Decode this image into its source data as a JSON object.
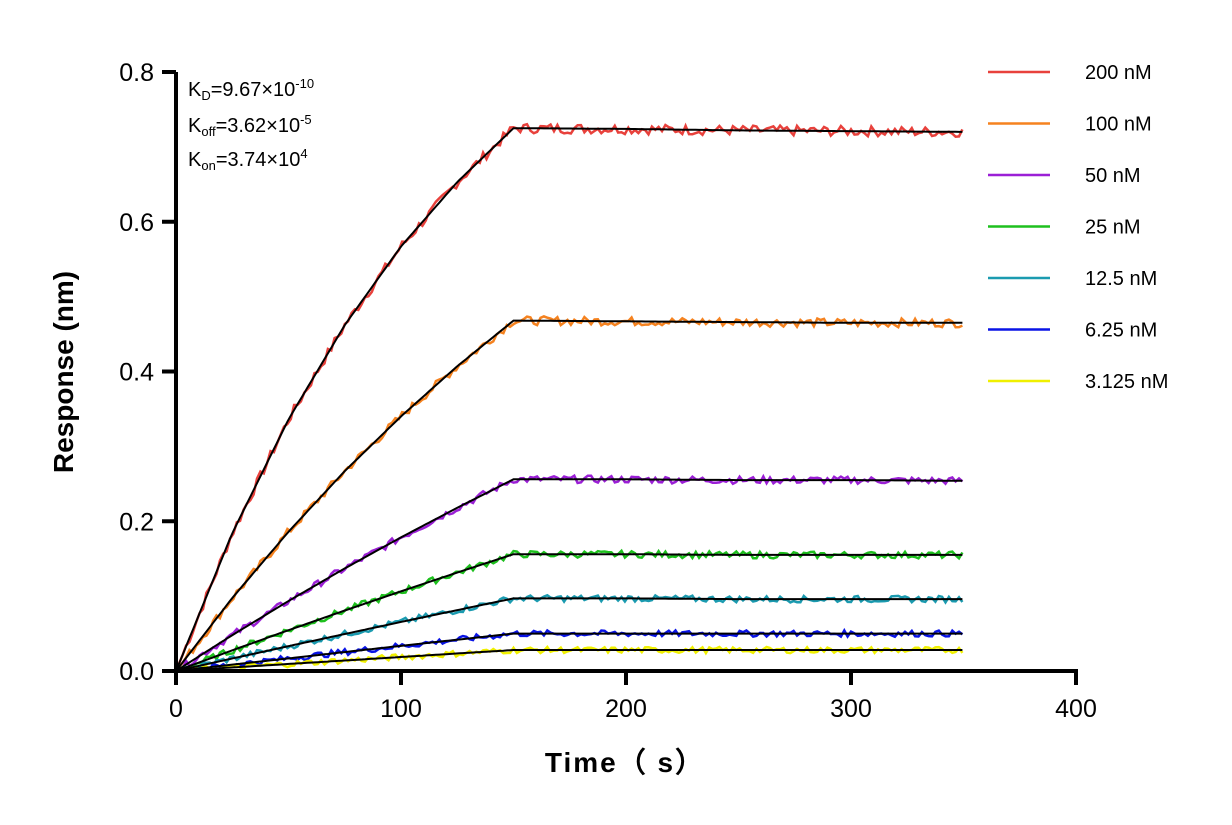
{
  "chart_data": {
    "type": "line",
    "title": "",
    "xlabel": "Time（ s）",
    "ylabel": "Response (nm)",
    "xlim": [
      0,
      400
    ],
    "ylim": [
      0,
      0.8
    ],
    "xticks": [
      "0",
      "100",
      "200",
      "300",
      "400"
    ],
    "yticks": [
      "0.0",
      "0.2",
      "0.4",
      "0.6",
      "0.8"
    ],
    "grid": false,
    "legend_position": "top-right",
    "x": [
      0,
      25,
      50,
      75,
      100,
      125,
      150,
      200,
      250,
      300,
      350
    ],
    "fit_color": "#000000",
    "series": [
      {
        "name": "200 nM",
        "color": "#e8413c",
        "values": [
          0,
          0.184,
          0.336,
          0.462,
          0.567,
          0.653,
          0.725,
          0.724,
          0.722,
          0.721,
          0.72
        ]
      },
      {
        "name": "100 nM",
        "color": "#f5821f",
        "values": [
          0,
          0.0975,
          0.186,
          0.267,
          0.34,
          0.407,
          0.468,
          0.467,
          0.466,
          0.465,
          0.465
        ]
      },
      {
        "name": "50 nM",
        "color": "#9b1fd6",
        "values": [
          0,
          0.0479,
          0.0935,
          0.137,
          0.1785,
          0.218,
          0.256,
          0.256,
          0.255,
          0.255,
          0.254
        ]
      },
      {
        "name": "25 nM",
        "color": "#1ec01e",
        "values": [
          0,
          0.0276,
          0.0545,
          0.0808,
          0.1064,
          0.1315,
          0.156,
          0.156,
          0.155,
          0.155,
          0.155
        ]
      },
      {
        "name": "12.5 nM",
        "color": "#1b9bb0",
        "values": [
          0,
          0.0167,
          0.0332,
          0.0494,
          0.0655,
          0.0813,
          0.097,
          0.097,
          0.096,
          0.096,
          0.096
        ]
      },
      {
        "name": "6.25 nM",
        "color": "#0a14e6",
        "values": [
          0,
          0.0085,
          0.0168,
          0.0253,
          0.0336,
          0.0418,
          0.05,
          0.05,
          0.05,
          0.05,
          0.05
        ]
      },
      {
        "name": "3.125 nM",
        "color": "#f0f000",
        "values": [
          0,
          0.0047,
          0.0094,
          0.014,
          0.0187,
          0.0234,
          0.028,
          0.028,
          0.028,
          0.028,
          0.028
        ]
      }
    ],
    "annotations": [
      {
        "base": "K",
        "sub": "D",
        "rest": "=9.67×10",
        "sup": "-10"
      },
      {
        "base": "K",
        "sub": "off",
        "rest": "=3.62×10",
        "sup": "-5"
      },
      {
        "base": "K",
        "sub": "on",
        "rest": "=3.74×10",
        "sup": "4"
      }
    ]
  }
}
